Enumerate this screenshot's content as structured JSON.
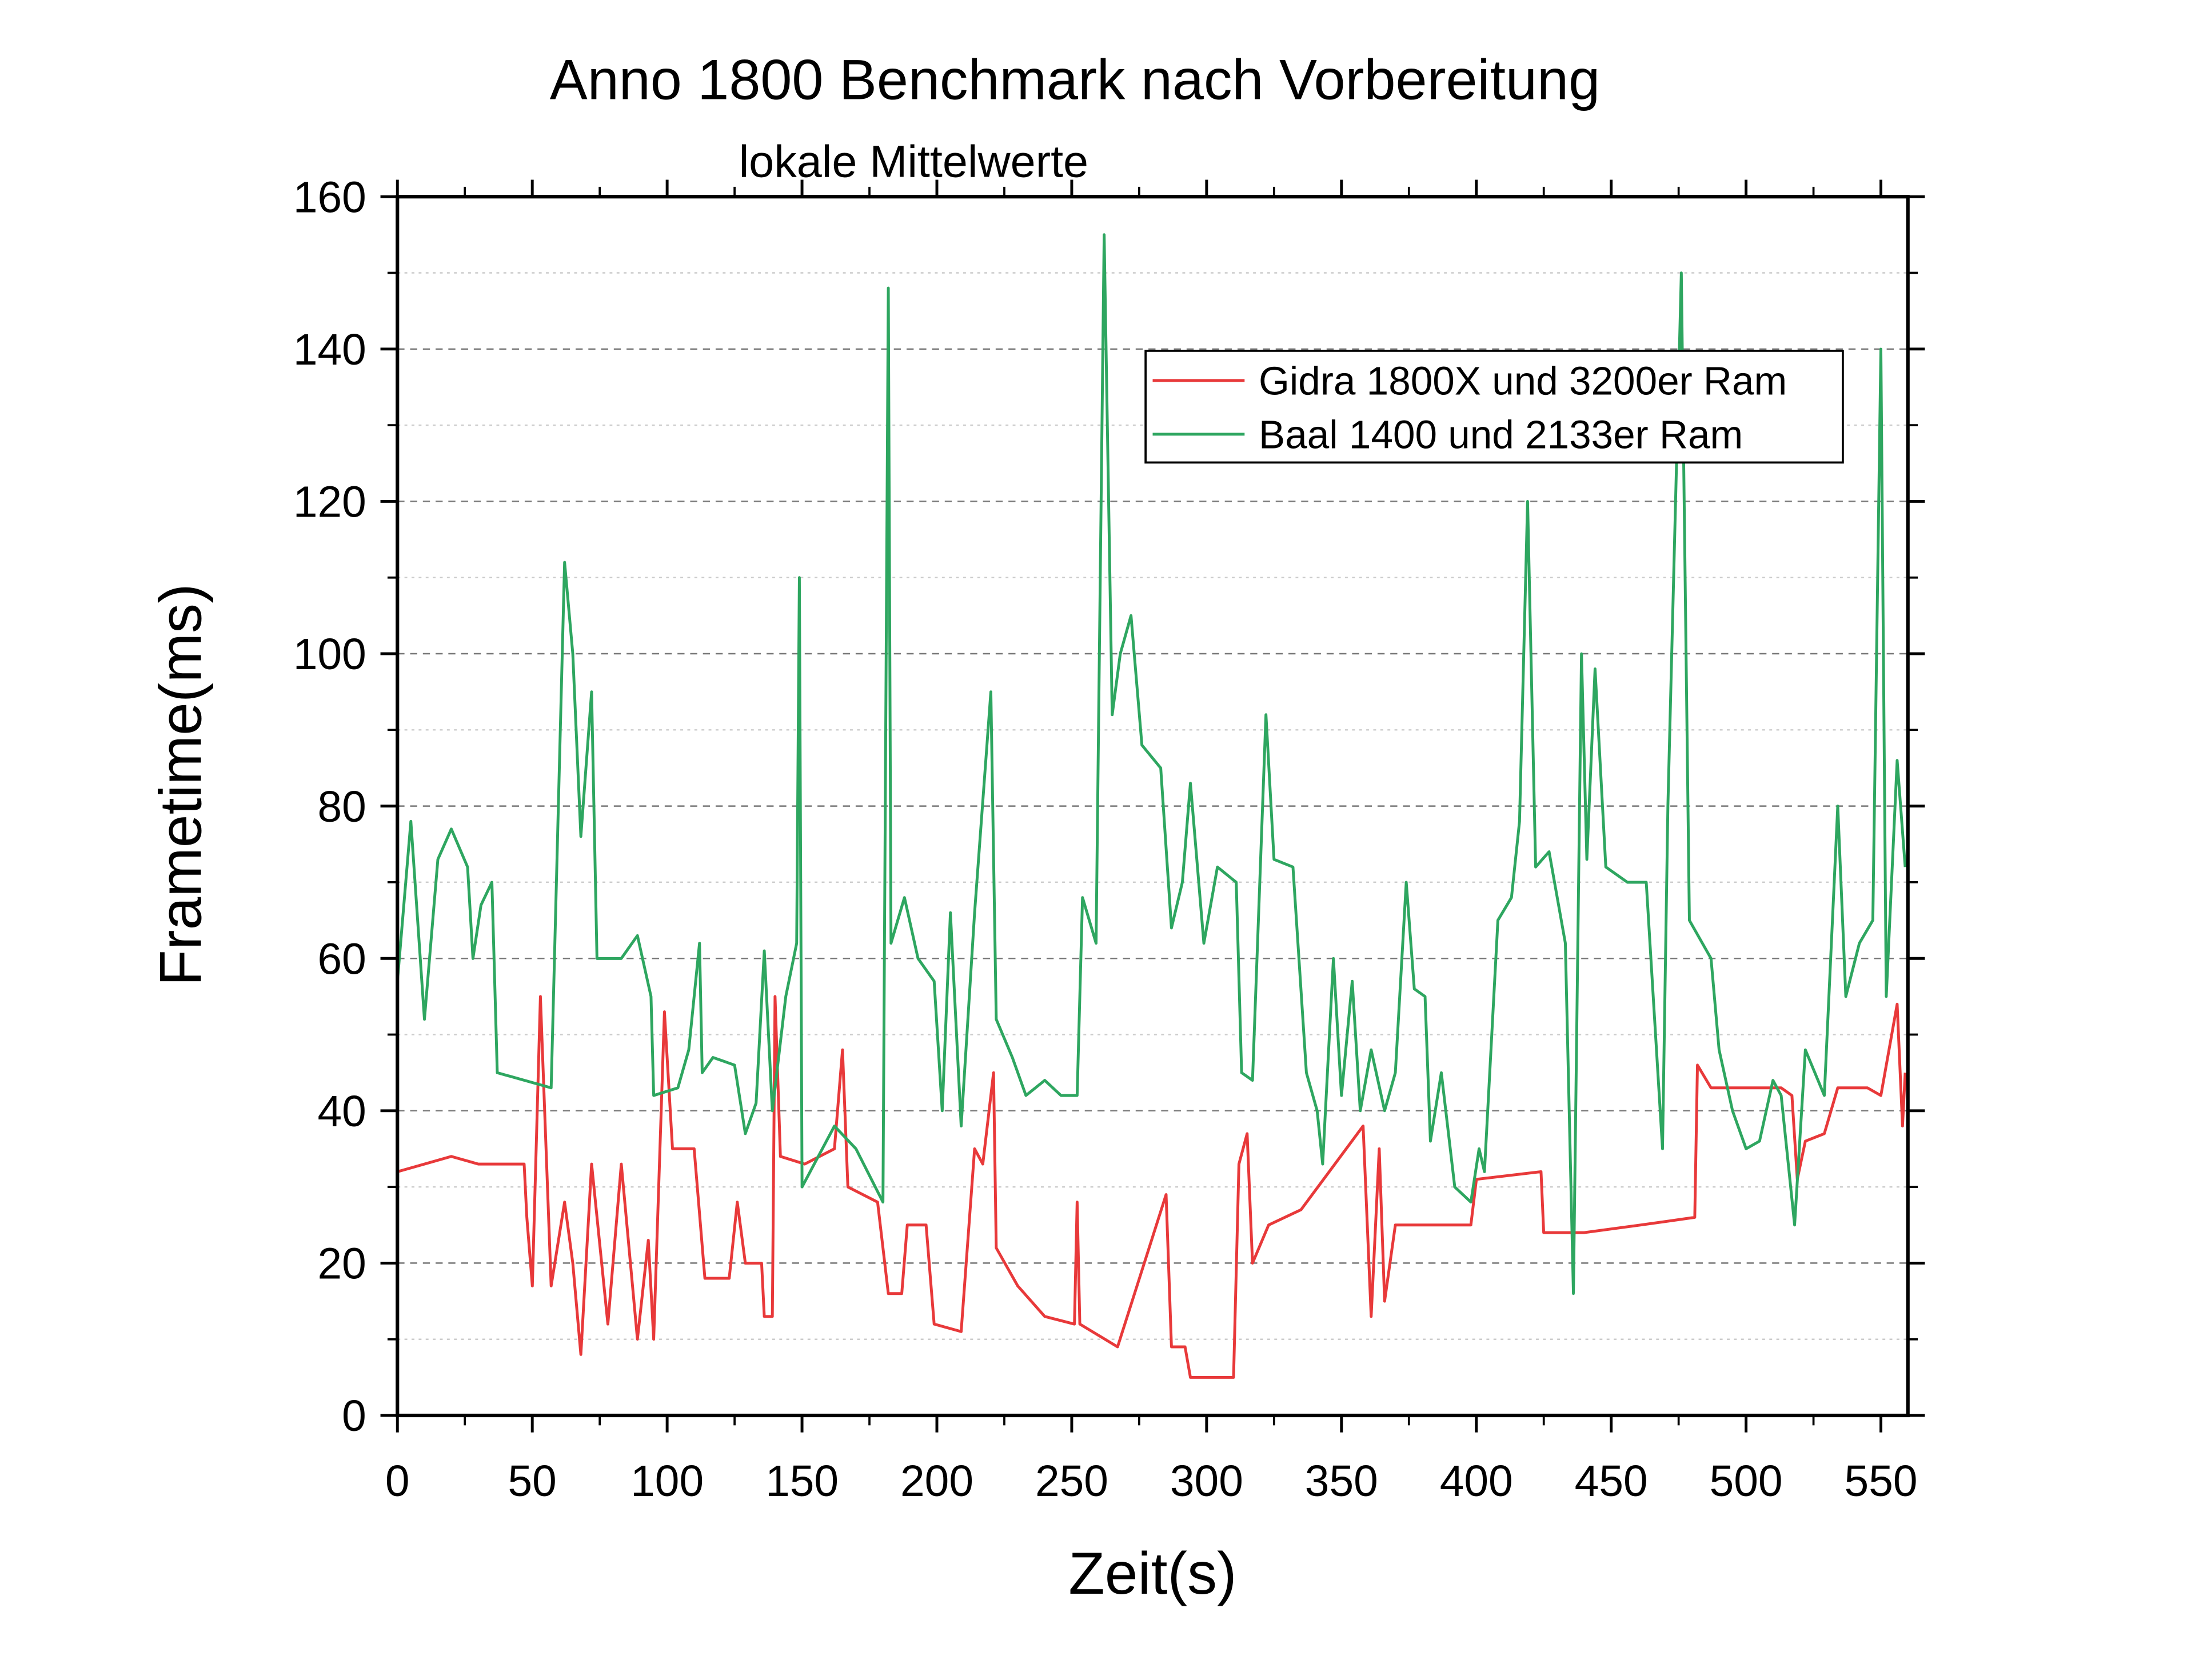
{
  "chart_data": {
    "type": "line",
    "title": "Anno 1800 Benchmark nach Vorbereitung",
    "subtitle": "lokale Mittelwerte",
    "xlabel": "Zeit(s)",
    "ylabel": "Frametime(ms)",
    "xlim": [
      0,
      560
    ],
    "ylim": [
      0,
      160
    ],
    "xticks": [
      "0",
      "50",
      "100",
      "150",
      "200",
      "250",
      "300",
      "350",
      "400",
      "450",
      "500",
      "550"
    ],
    "yticks": [
      "0",
      "20",
      "40",
      "60",
      "80",
      "100",
      "120",
      "140",
      "160"
    ],
    "grid": "major dashed, minor dotted",
    "legend_position": "top-right",
    "series": [
      {
        "name": "Gidra 1800X und 3200er Ram",
        "color": "#e8393a",
        "x": [
          0,
          10,
          20,
          30,
          47,
          48,
          50,
          53,
          57,
          62,
          65,
          68,
          72,
          78,
          83,
          89,
          93,
          95,
          99,
          102,
          110,
          114,
          123,
          126,
          129,
          135,
          136,
          139,
          140,
          142,
          151,
          162,
          165,
          167,
          178,
          182,
          187,
          189,
          196,
          199,
          209,
          214,
          217,
          221,
          222,
          230,
          240,
          251,
          252,
          253,
          267,
          285,
          287,
          292,
          294,
          310,
          312,
          315,
          317,
          323,
          335,
          358,
          361,
          364,
          366,
          370,
          398,
          400,
          424,
          425,
          440,
          461,
          481,
          482,
          487,
          513,
          517,
          519,
          522,
          529,
          534,
          545,
          550,
          556,
          558,
          559
        ],
        "y": [
          32,
          33,
          34,
          33,
          33,
          26,
          17,
          55,
          17,
          28,
          20,
          8,
          33,
          12,
          33,
          10,
          23,
          10,
          53,
          35,
          35,
          18,
          18,
          28,
          20,
          20,
          13,
          13,
          55,
          34,
          33,
          35,
          48,
          30,
          28,
          16,
          16,
          25,
          25,
          12,
          11,
          35,
          33,
          45,
          22,
          17,
          13,
          12,
          28,
          12,
          9,
          29,
          9,
          9,
          5,
          5,
          33,
          37,
          20,
          25,
          27,
          38,
          13,
          35,
          15,
          25,
          25,
          31,
          32,
          24,
          24,
          25,
          26,
          46,
          43,
          43,
          42,
          31,
          36,
          37,
          43,
          43,
          42,
          54,
          38,
          45
        ]
      },
      {
        "name": "Baal 1400 und 2133er Ram",
        "color": "#2ea660",
        "x": [
          0,
          5,
          10,
          15,
          20,
          26,
          28,
          31,
          35,
          37,
          57,
          62,
          65,
          68,
          72,
          74,
          83,
          89,
          94,
          95,
          104,
          108,
          112,
          113,
          117,
          125,
          129,
          133,
          136,
          139,
          144,
          148,
          149,
          150,
          162,
          170,
          180,
          182,
          183,
          188,
          193,
          199,
          202,
          205,
          209,
          214,
          220,
          222,
          228,
          233,
          240,
          246,
          252,
          254,
          259,
          262,
          265,
          268,
          272,
          276,
          283,
          287,
          291,
          294,
          299,
          304,
          311,
          313,
          317,
          322,
          325,
          332,
          337,
          341,
          343,
          347,
          350,
          354,
          357,
          361,
          366,
          370,
          374,
          377,
          381,
          383,
          387,
          392,
          398,
          401,
          403,
          408,
          413,
          416,
          419,
          422,
          427,
          433,
          436,
          439,
          441,
          444,
          448,
          456,
          463,
          469,
          471,
          476,
          479,
          487,
          490,
          495,
          500,
          505,
          510,
          513,
          518,
          522,
          529,
          534,
          537,
          542,
          547,
          550,
          552,
          556,
          559
        ],
        "y": [
          57,
          78,
          52,
          73,
          77,
          72,
          60,
          67,
          70,
          45,
          43,
          112,
          100,
          76,
          95,
          60,
          60,
          63,
          55,
          42,
          43,
          48,
          62,
          45,
          47,
          46,
          37,
          41,
          61,
          40,
          55,
          62,
          110,
          30,
          38,
          35,
          28,
          148,
          62,
          68,
          60,
          57,
          40,
          66,
          38,
          66,
          95,
          52,
          47,
          42,
          44,
          42,
          42,
          68,
          62,
          155,
          92,
          100,
          105,
          88,
          85,
          64,
          70,
          83,
          62,
          72,
          70,
          45,
          44,
          92,
          73,
          72,
          45,
          40,
          33,
          60,
          42,
          57,
          40,
          48,
          40,
          45,
          70,
          56,
          55,
          36,
          45,
          30,
          28,
          35,
          32,
          65,
          68,
          78,
          120,
          72,
          74,
          62,
          16,
          100,
          73,
          98,
          72,
          70,
          70,
          35,
          80,
          150,
          65,
          60,
          48,
          40,
          35,
          36,
          44,
          42,
          25,
          48,
          42,
          80,
          55,
          62,
          65,
          140,
          55,
          86,
          72
        ]
      }
    ]
  }
}
